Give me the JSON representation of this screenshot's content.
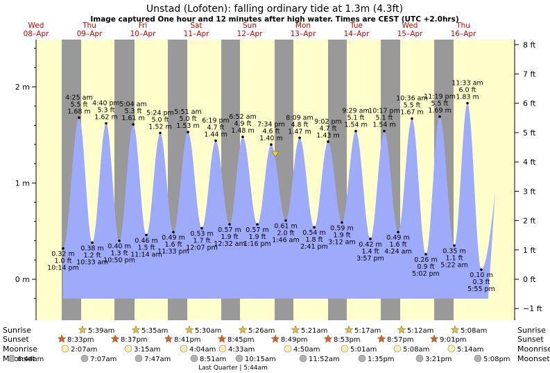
{
  "page": {
    "title": "Unstad (Lofoten): falling  ordinary tide at 1.3m (4.3ft)",
    "subtitle": "Image captured One hour and 12 minutes after high water. Times are CEST (UTC +2.0hrs)"
  },
  "days": [
    {
      "name": "Wed",
      "date": "08–Apr"
    },
    {
      "name": "Thu",
      "date": "09–Apr"
    },
    {
      "name": "Fri",
      "date": "10–Apr"
    },
    {
      "name": "Sat",
      "date": "11–Apr"
    },
    {
      "name": "Sun",
      "date": "12–Apr"
    },
    {
      "name": "Mon",
      "date": "13–Apr"
    },
    {
      "name": "Tue",
      "date": "14–Apr"
    },
    {
      "name": "Wed",
      "date": "15–Apr"
    },
    {
      "name": "Thu",
      "date": "16–Apr"
    }
  ],
  "row_labels": {
    "sunrise": "Sunrise",
    "sunset": "Sunset",
    "moonrise": "Moonrise",
    "moonset": "Moonset"
  },
  "astro": {
    "sunrise": [
      "5:39am",
      "5:35am",
      "5:30am",
      "5:26am",
      "5:21am",
      "5:17am",
      "5:12am",
      "5:08am"
    ],
    "sunset": [
      "8:33pm",
      "8:37pm",
      "8:41pm",
      "8:45pm",
      "8:49pm",
      "8:53pm",
      "8:57pm",
      "9:01pm"
    ],
    "moonrise": [
      "2:07am",
      "3:15am",
      "4:04am",
      "4:33am",
      "4:50am",
      "5:01am",
      "5:08am",
      "5:14am"
    ],
    "moonset": [
      "6:44am",
      "7:07am",
      "7:47am",
      "8:51am",
      "10:15am",
      "11:52am",
      "1:35pm",
      "3:21pm",
      "5:08pm"
    ]
  },
  "moon_phase": "Last Quarter | 5:44am",
  "colors": {
    "day_bg": "#ffffcc",
    "night_bg": "#999999",
    "tide_fill": "#9eaafa",
    "day_text": "#cc0000",
    "sun_icon": "#d8c040",
    "sunset_icon": "#d06030",
    "moonrise_icon": "#f8f0b0",
    "moonset_icon": "#b0b0b0",
    "now_marker": "#f0d020"
  },
  "chart_data": {
    "type": "area",
    "title": "Unstad (Lofoten): falling  ordinary tide at 1.3m (4.3ft)",
    "ylabel_left": "m",
    "ylabel_right": "ft",
    "ylim_m": [
      -0.25,
      2.5
    ],
    "left_ticks": [
      "2 m",
      "1 m",
      "0 m"
    ],
    "right_ticks": [
      "8 ft",
      "7 ft",
      "6 ft",
      "5 ft",
      "4 ft",
      "3 ft",
      "2 ft",
      "1 ft",
      "0 ft",
      "−1 ft"
    ],
    "series": [
      {
        "points": [
          {
            "type": "low",
            "time": "10:14 pm",
            "ft": "1.0 ft",
            "m": "0.32 m",
            "value": 0.32
          },
          {
            "type": "high",
            "time": "4:25 am",
            "ft": "5.5 ft",
            "m": "1.68 m",
            "value": 1.68
          },
          {
            "type": "low",
            "time": "10:33 am",
            "ft": "1.2 ft",
            "m": "0.38 m",
            "value": 0.38
          },
          {
            "type": "high",
            "time": "4:40 pm",
            "ft": "5.3 ft",
            "m": "1.62 m",
            "value": 1.62
          },
          {
            "type": "low",
            "time": "10:50 pm",
            "ft": "1.3 ft",
            "m": "0.40 m",
            "value": 0.4
          },
          {
            "type": "high",
            "time": "5:04 am",
            "ft": "5.3 ft",
            "m": "1.61 m",
            "value": 1.61
          },
          {
            "type": "low",
            "time": "11:14 am",
            "ft": "1.5 ft",
            "m": "0.46 m",
            "value": 0.46
          },
          {
            "type": "high",
            "time": "5:24 pm",
            "ft": "5.0 ft",
            "m": "1.52 m",
            "value": 1.52
          },
          {
            "type": "low",
            "time": "11:33 pm",
            "ft": "1.6 ft",
            "m": "0.49 m",
            "value": 0.49
          },
          {
            "type": "high",
            "time": "5:51 am",
            "ft": "5.0 ft",
            "m": "1.53 m",
            "value": 1.53
          },
          {
            "type": "low",
            "time": "12:07 pm",
            "ft": "1.7 ft",
            "m": "0.53 m",
            "value": 0.53
          },
          {
            "type": "high",
            "time": "6:19 pm",
            "ft": "4.7 ft",
            "m": "1.44 m",
            "value": 1.44
          },
          {
            "type": "low",
            "time": "12:32 am",
            "ft": "1.9 ft",
            "m": "0.57 m",
            "value": 0.57
          },
          {
            "type": "high",
            "time": "6:52 am",
            "ft": "4.9 ft",
            "m": "1.48 m",
            "value": 1.48
          },
          {
            "type": "low",
            "time": "1:16 pm",
            "ft": "1.9 ft",
            "m": "0.57 m",
            "value": 0.57
          },
          {
            "type": "high",
            "time": "7:34 pm",
            "ft": "4.6 ft",
            "m": "1.40 m",
            "value": 1.4
          },
          {
            "type": "low",
            "time": "1:46 am",
            "ft": "2.0 ft",
            "m": "0.61 m",
            "value": 0.61
          },
          {
            "type": "high",
            "time": "8:09 am",
            "ft": "4.8 ft",
            "m": "1.47 m",
            "value": 1.47
          },
          {
            "type": "low",
            "time": "2:41 pm",
            "ft": "1.8 ft",
            "m": "0.54 m",
            "value": 0.54
          },
          {
            "type": "high",
            "time": "9:02 pm",
            "ft": "4.7 ft",
            "m": "1.43 m",
            "value": 1.43
          },
          {
            "type": "low",
            "time": "3:12 am",
            "ft": "1.9 ft",
            "m": "0.59 m",
            "value": 0.59
          },
          {
            "type": "high",
            "time": "9:29 am",
            "ft": "5.1 ft",
            "m": "1.54 m",
            "value": 1.54
          },
          {
            "type": "low",
            "time": "3:57 pm",
            "ft": "1.4 ft",
            "m": "0.42 m",
            "value": 0.42
          },
          {
            "type": "high",
            "time": "10:17 pm",
            "ft": "5.1 ft",
            "m": "1.54 m",
            "value": 1.54
          },
          {
            "type": "low",
            "time": "4:24 am",
            "ft": "1.6 ft",
            "m": "0.49 m",
            "value": 0.49
          },
          {
            "type": "high",
            "time": "10:36 am",
            "ft": "5.5 ft",
            "m": "1.67 m",
            "value": 1.67
          },
          {
            "type": "low",
            "time": "5:02 pm",
            "ft": "0.9 ft",
            "m": "0.26 m",
            "value": 0.26
          },
          {
            "type": "high",
            "time": "11:19 pm",
            "ft": "5.5 ft",
            "m": "1.69 m",
            "value": 1.69
          },
          {
            "type": "low",
            "time": "5:22 am",
            "ft": "1.1 ft",
            "m": "0.35 m",
            "value": 0.35
          },
          {
            "type": "high",
            "time": "11:33 am",
            "ft": "6.0 ft",
            "m": "1.83 m",
            "value": 1.83
          },
          {
            "type": "low",
            "time": "5:55 pm",
            "ft": "0.3 ft",
            "m": "0.10 m",
            "value": 0.1
          }
        ]
      }
    ],
    "current": {
      "value_m": 1.3,
      "value_ft": 4.3
    }
  }
}
